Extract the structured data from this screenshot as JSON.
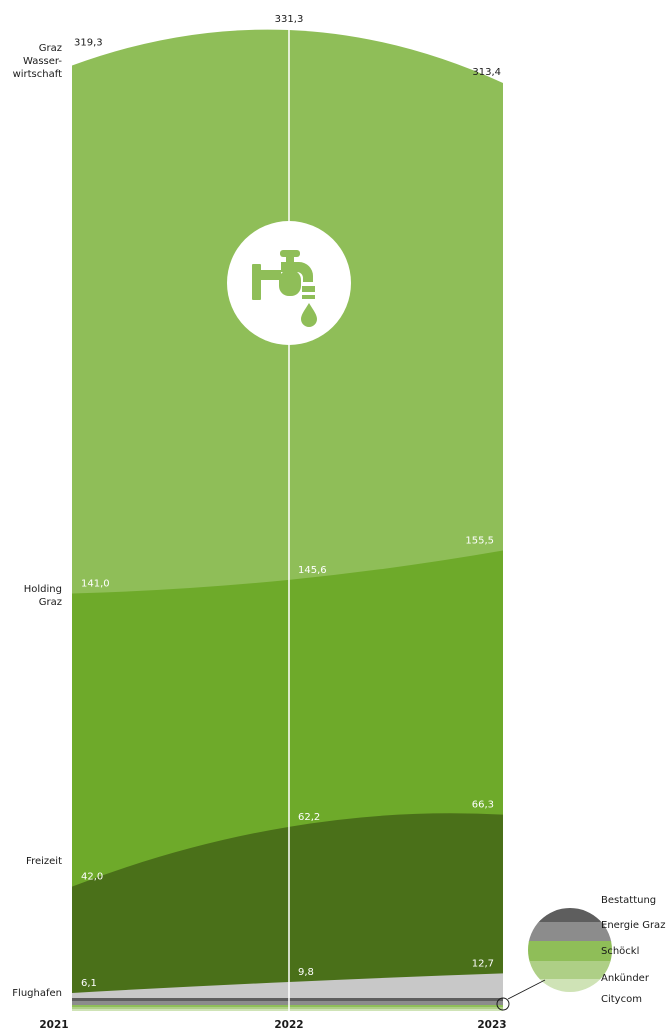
{
  "chart_data": {
    "type": "area",
    "title": "",
    "x": [
      "2021",
      "2022",
      "2023"
    ],
    "series": [
      {
        "name": "Flughafen",
        "values": [
          6.1,
          9.8,
          12.7
        ],
        "color": "#c8c8c8",
        "value_labels": [
          "6,1",
          "9,8",
          "12,7"
        ]
      },
      {
        "name": "Freizeit",
        "values": [
          42.0,
          62.2,
          66.3
        ],
        "color": "#4a7019",
        "value_labels": [
          "42,0",
          "62,2",
          "66,3"
        ]
      },
      {
        "name": "Holding Graz",
        "values": [
          141.0,
          145.6,
          155.5
        ],
        "color": "#6eaa2a",
        "value_labels": [
          "141,0",
          "145,6",
          "155,5"
        ]
      },
      {
        "name": "Graz Wasserwirtschaft",
        "values": [
          319.3,
          331.3,
          313.4
        ],
        "color": "#8fbe58",
        "value_labels": [
          "319,3",
          "331,3",
          "313,4"
        ]
      }
    ],
    "category_labels": [
      {
        "series": "Graz Wasserwirtschaft",
        "lines": [
          "Graz",
          "Wasser-",
          "wirtschaft"
        ]
      },
      {
        "series": "Holding Graz",
        "lines": [
          "Holding",
          "Graz"
        ]
      },
      {
        "series": "Freizeit",
        "lines": [
          "Freizeit"
        ]
      },
      {
        "series": "Flughafen",
        "lines": [
          "Flughafen"
        ]
      }
    ],
    "legend": {
      "placement": "bottom-right",
      "entries": [
        {
          "name": "Bestattung",
          "color": "#5e5e5e"
        },
        {
          "name": "Energie Graz",
          "color": "#8c8c8c"
        },
        {
          "name": "Schöckl",
          "color": "#8fbe58"
        },
        {
          "name": "Ankünder",
          "color": "#aecf86"
        },
        {
          "name": "Citycom",
          "color": "#cfe3b6"
        }
      ]
    },
    "icon": "water-tap-icon",
    "ylim": [
      0,
      331.3
    ],
    "grid": false
  }
}
